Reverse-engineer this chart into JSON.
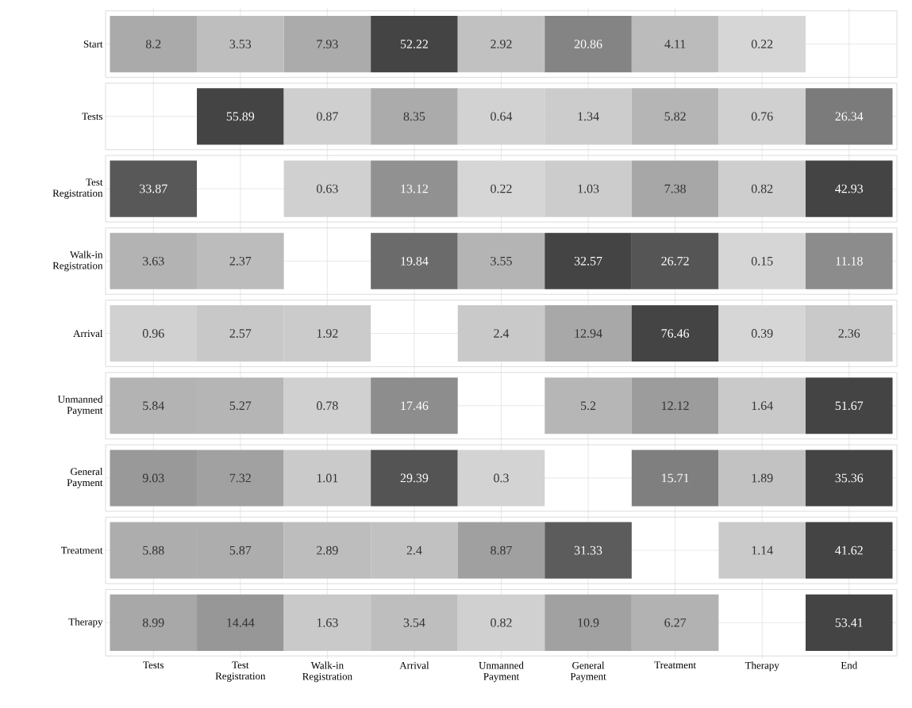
{
  "chart_data": {
    "type": "heatmap",
    "categories": [
      "Tests",
      "Test Registration",
      "Walk-in Registration",
      "Arrival",
      "Unmanned Payment",
      "General Payment",
      "Treatment",
      "Therapy",
      "End"
    ],
    "y_categories": [
      "Start",
      "Tests",
      "Test Registration",
      "Walk-in Registration",
      "Arrival",
      "Unmanned Payment",
      "General Payment",
      "Treatment",
      "Therapy"
    ],
    "cells": [
      [
        8.2,
        3.53,
        7.93,
        52.22,
        2.92,
        20.86,
        4.11,
        0.22,
        null
      ],
      [
        null,
        55.89,
        0.87,
        8.35,
        0.64,
        1.34,
        5.82,
        0.76,
        26.34
      ],
      [
        33.87,
        null,
        0.63,
        13.12,
        0.22,
        1.03,
        7.38,
        0.82,
        42.93
      ],
      [
        3.63,
        2.37,
        null,
        19.84,
        3.55,
        32.57,
        26.72,
        0.15,
        11.18
      ],
      [
        0.96,
        2.57,
        1.92,
        null,
        2.4,
        12.94,
        76.46,
        0.39,
        2.36
      ],
      [
        5.84,
        5.27,
        0.78,
        17.46,
        null,
        5.2,
        12.12,
        1.64,
        51.67
      ],
      [
        9.03,
        7.32,
        1.01,
        29.39,
        0.3,
        null,
        15.71,
        1.89,
        35.36
      ],
      [
        5.88,
        5.87,
        2.89,
        2.4,
        8.87,
        31.33,
        null,
        1.14,
        41.62
      ],
      [
        8.99,
        14.44,
        1.63,
        3.54,
        0.82,
        10.9,
        6.27,
        null,
        53.41
      ]
    ],
    "data_labels": true,
    "grid": true
  }
}
